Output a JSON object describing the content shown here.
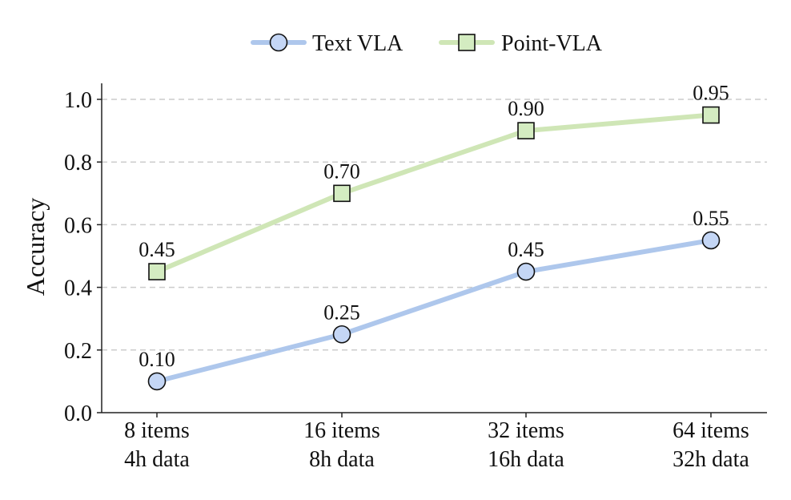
{
  "chart_data": {
    "type": "line",
    "title": "",
    "xlabel": "",
    "ylabel": "Accuracy",
    "categories": [
      [
        "8 items",
        "4h data"
      ],
      [
        "16 items",
        "8h data"
      ],
      [
        "32 items",
        "16h data"
      ],
      [
        "64 items",
        "32h data"
      ]
    ],
    "ylim": [
      0,
      1.05
    ],
    "yticks": [
      "0.0",
      "0.2",
      "0.4",
      "0.6",
      "0.8",
      "1.0"
    ],
    "ytick_values": [
      0,
      0.2,
      0.4,
      0.6,
      0.8,
      1.0
    ],
    "grid": "horizontal-dashed",
    "legend_position": "top-center",
    "series": [
      {
        "name": "Text VLA",
        "values": [
          0.1,
          0.25,
          0.45,
          0.55
        ],
        "labels": [
          "0.10",
          "0.25",
          "0.45",
          "0.55"
        ],
        "marker": "circle",
        "line_color": "#aec7ec",
        "marker_fill": "#c4d6f5"
      },
      {
        "name": "Point-VLA",
        "values": [
          0.45,
          0.7,
          0.9,
          0.95
        ],
        "labels": [
          "0.45",
          "0.70",
          "0.90",
          "0.95"
        ],
        "marker": "square",
        "line_color": "#cfe6b6",
        "marker_fill": "#d4ecc1"
      }
    ]
  }
}
